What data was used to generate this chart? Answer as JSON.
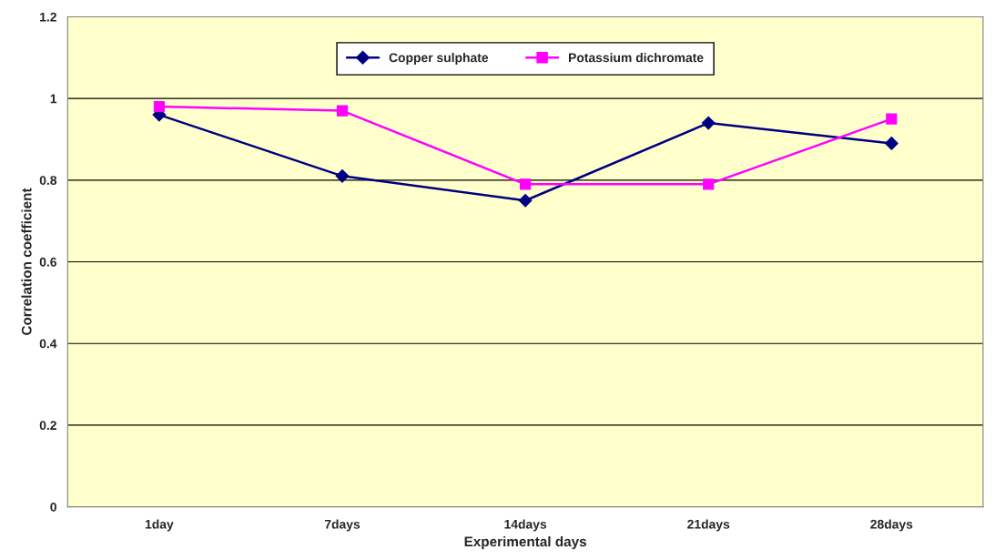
{
  "chart_data": {
    "type": "line",
    "xlabel": "Experimental days",
    "ylabel": "Correlation coefficient",
    "categories": [
      "1day",
      "7days",
      "14days",
      "21days",
      "28days"
    ],
    "series": [
      {
        "name": "Copper sulphate",
        "color": "#000080",
        "marker": "diamond",
        "values": [
          0.96,
          0.81,
          0.75,
          0.94,
          0.89
        ]
      },
      {
        "name": "Potassium dichromate",
        "color": "#ff00ff",
        "marker": "square",
        "values": [
          0.98,
          0.97,
          0.79,
          0.79,
          0.95
        ]
      }
    ],
    "ylim": [
      0,
      1.2
    ],
    "yticks": [
      0,
      0.2,
      0.4,
      0.6,
      0.8,
      1,
      1.2
    ],
    "grid": "y",
    "legend": "top",
    "line_style": "solid"
  }
}
